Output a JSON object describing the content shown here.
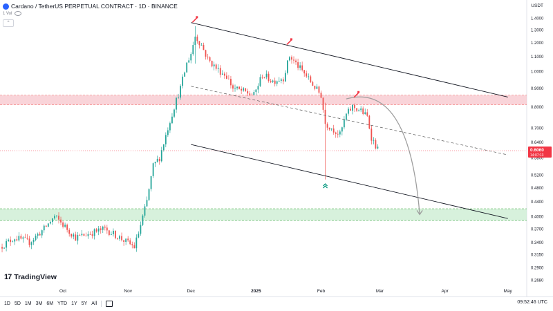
{
  "header": {
    "symbol": "Cardano / TetherUS PERPETUAL CONTRACT · 1D · BINANCE",
    "sub_label": "1 Vol",
    "currency": "USDT"
  },
  "branding": {
    "logo_text": "TradingView"
  },
  "timeframes": [
    "1D",
    "5D",
    "1M",
    "3M",
    "6M",
    "YTD",
    "1Y",
    "5Y",
    "All"
  ],
  "clock": "09:52:46 UTC",
  "chart_data": {
    "type": "candlestick",
    "x_range": [
      "2024-09-01",
      "2025-05-10"
    ],
    "y_scale": "log",
    "y_range": [
      0.26,
      1.45
    ],
    "y_ticks": [
      "1.4000",
      "1.3000",
      "1.2000",
      "1.1000",
      "1.0000",
      "0.9000",
      "0.8000",
      "0.7000",
      "0.6400",
      "0.5800",
      "0.5200",
      "0.4800",
      "0.4400",
      "0.4000",
      "0.3700",
      "0.3400",
      "0.3150",
      "0.2900",
      "0.2680",
      "0.2490"
    ],
    "x_ticks": [
      {
        "label": "Oct",
        "date": "2024-10-01",
        "bold": false
      },
      {
        "label": "Nov",
        "date": "2024-11-01",
        "bold": false
      },
      {
        "label": "Dec",
        "date": "2024-12-01",
        "bold": false
      },
      {
        "label": "2025",
        "date": "2025-01-01",
        "bold": true
      },
      {
        "label": "Feb",
        "date": "2025-02-01",
        "bold": false
      },
      {
        "label": "Mar",
        "date": "2025-03-01",
        "bold": false
      },
      {
        "label": "Apr",
        "date": "2025-04-01",
        "bold": false
      },
      {
        "label": "May",
        "date": "2025-05-01",
        "bold": false
      }
    ],
    "price_path": [
      [
        "2024-09-01",
        0.33
      ],
      [
        "2024-09-08",
        0.35
      ],
      [
        "2024-09-15",
        0.34
      ],
      [
        "2024-09-22",
        0.37
      ],
      [
        "2024-09-27",
        0.4
      ],
      [
        "2024-10-01",
        0.38
      ],
      [
        "2024-10-07",
        0.35
      ],
      [
        "2024-10-14",
        0.36
      ],
      [
        "2024-10-21",
        0.37
      ],
      [
        "2024-10-28",
        0.35
      ],
      [
        "2024-11-04",
        0.33
      ],
      [
        "2024-11-06",
        0.36
      ],
      [
        "2024-11-10",
        0.44
      ],
      [
        "2024-11-13",
        0.55
      ],
      [
        "2024-11-16",
        0.58
      ],
      [
        "2024-11-20",
        0.7
      ],
      [
        "2024-11-23",
        0.8
      ],
      [
        "2024-11-26",
        0.9
      ],
      [
        "2024-11-29",
        1.05
      ],
      [
        "2024-12-01",
        1.12
      ],
      [
        "2024-12-03",
        1.25
      ],
      [
        "2024-12-06",
        1.18
      ],
      [
        "2024-12-09",
        1.08
      ],
      [
        "2024-12-13",
        1.02
      ],
      [
        "2024-12-18",
        0.97
      ],
      [
        "2024-12-21",
        0.9
      ],
      [
        "2024-12-26",
        0.88
      ],
      [
        "2024-12-31",
        0.86
      ],
      [
        "2025-01-04",
        0.98
      ],
      [
        "2025-01-09",
        0.94
      ],
      [
        "2025-01-14",
        0.96
      ],
      [
        "2025-01-17",
        1.1
      ],
      [
        "2025-01-20",
        1.05
      ],
      [
        "2025-01-25",
        0.97
      ],
      [
        "2025-01-28",
        0.92
      ],
      [
        "2025-02-01",
        0.86
      ],
      [
        "2025-02-03",
        0.72
      ],
      [
        "2025-02-06",
        0.7
      ],
      [
        "2025-02-10",
        0.67
      ],
      [
        "2025-02-13",
        0.76
      ],
      [
        "2025-02-16",
        0.8
      ],
      [
        "2025-02-20",
        0.78
      ],
      [
        "2025-02-23",
        0.75
      ],
      [
        "2025-02-25",
        0.66
      ],
      [
        "2025-02-28",
        0.61
      ]
    ],
    "wicks": [
      {
        "date": "2025-02-03",
        "low": 0.505,
        "high": 0.82
      },
      {
        "date": "2024-12-03",
        "low": 1.05,
        "high": 1.33
      }
    ],
    "last_price": "0.6060",
    "countdown": "14:07:13",
    "zones": [
      {
        "name": "resistance",
        "low": 0.81,
        "high": 0.86,
        "color": "#f7c6cc"
      },
      {
        "name": "support",
        "low": 0.39,
        "high": 0.42,
        "color": "#c9ecd0"
      }
    ],
    "lines": [
      {
        "style": "solid",
        "from": [
          "2024-12-01",
          1.36
        ],
        "to": [
          "2025-05-01",
          0.85
        ]
      },
      {
        "style": "solid",
        "from": [
          "2024-12-01",
          0.63
        ],
        "to": [
          "2025-05-01",
          0.395
        ]
      },
      {
        "style": "dashed",
        "from": [
          "2024-12-01",
          0.91
        ],
        "to": [
          "2025-05-01",
          0.59
        ]
      }
    ],
    "projection": {
      "from": [
        "2025-02-13",
        0.84
      ],
      "to": [
        "2025-03-20",
        0.405
      ]
    },
    "markers": [
      {
        "type": "sell",
        "date": "2024-12-03",
        "price": 1.38
      },
      {
        "type": "sell",
        "date": "2025-01-17",
        "price": 1.2
      },
      {
        "type": "sell",
        "date": "2025-02-18",
        "price": 0.86
      },
      {
        "type": "buy",
        "date": "2025-02-03",
        "price": 0.485
      }
    ],
    "colors": {
      "up": "#26a69a",
      "down": "#ef5350",
      "line": "#131722",
      "price_tag": "#f23645",
      "projection": "#9e9e9e"
    }
  }
}
